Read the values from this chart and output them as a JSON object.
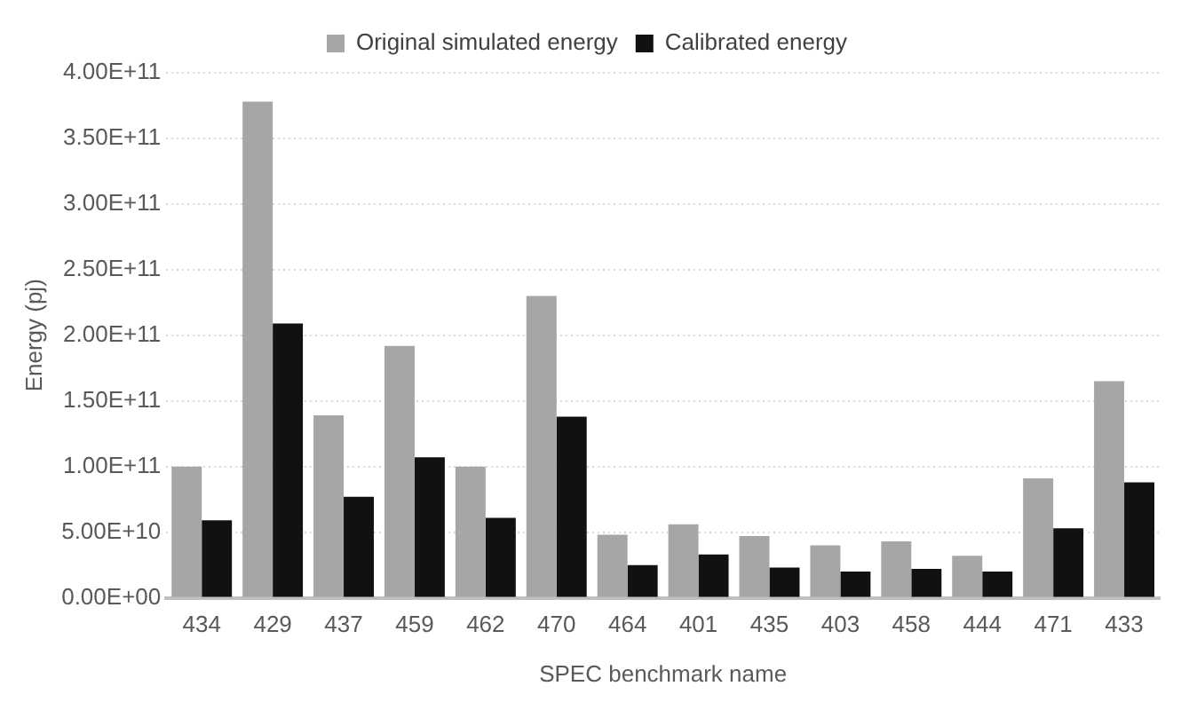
{
  "chart_data": {
    "type": "bar",
    "xlabel": "SPEC benchmark name",
    "ylabel": "Energy (pj)",
    "categories": [
      "434",
      "429",
      "437",
      "459",
      "462",
      "470",
      "464",
      "401",
      "435",
      "403",
      "458",
      "444",
      "471",
      "433"
    ],
    "series": [
      {
        "name": "Original simulated energy",
        "color": "#a6a6a6",
        "values": [
          100000000000.0,
          378000000000.0,
          139000000000.0,
          192000000000.0,
          100000000000.0,
          230000000000.0,
          48000000000.0,
          56000000000.0,
          47000000000.0,
          40000000000.0,
          43000000000.0,
          32000000000.0,
          91000000000.0,
          165000000000.0
        ]
      },
      {
        "name": "Calibrated energy",
        "color": "#111111",
        "values": [
          59000000000.0,
          209000000000.0,
          77000000000.0,
          107000000000.0,
          61000000000.0,
          138000000000.0,
          25000000000.0,
          33000000000.0,
          23000000000.0,
          20000000000.0,
          22000000000.0,
          20000000000.0,
          53000000000.0,
          88000000000.0
        ]
      }
    ],
    "ylim": [
      0,
      400000000000.0
    ],
    "yticks": [
      {
        "value": 0,
        "label": "0.00E+00"
      },
      {
        "value": 50000000000.0,
        "label": "5.00E+10"
      },
      {
        "value": 100000000000.0,
        "label": "1.00E+11"
      },
      {
        "value": 150000000000.0,
        "label": "1.50E+11"
      },
      {
        "value": 200000000000.0,
        "label": "2.00E+11"
      },
      {
        "value": 250000000000.0,
        "label": "2.50E+11"
      },
      {
        "value": 300000000000.0,
        "label": "3.00E+11"
      },
      {
        "value": 350000000000.0,
        "label": "3.50E+11"
      },
      {
        "value": 400000000000.0,
        "label": "4.00E+11"
      }
    ],
    "grid": "y",
    "legend": "top"
  }
}
